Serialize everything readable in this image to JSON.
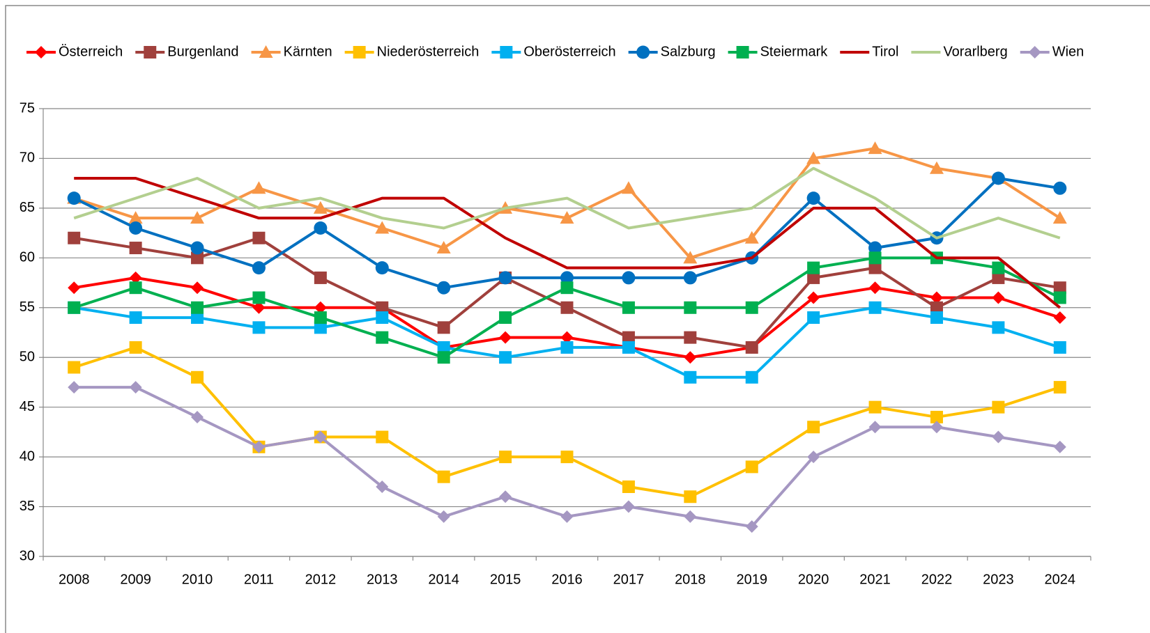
{
  "chart_data": {
    "type": "line",
    "categories": [
      "2008",
      "2009",
      "2010",
      "2011",
      "2012",
      "2013",
      "2014",
      "2015",
      "2016",
      "2017",
      "2018",
      "2019",
      "2020",
      "2021",
      "2022",
      "2023",
      "2024"
    ],
    "ylim": [
      30,
      75
    ],
    "yticks": [
      30,
      35,
      40,
      45,
      50,
      55,
      60,
      65,
      70,
      75
    ],
    "grid": true,
    "legend": "top",
    "series": [
      {
        "name": "Österreich",
        "color": "#ff0000",
        "marker": "diamond",
        "values": [
          57,
          58,
          57,
          55,
          55,
          55,
          51,
          52,
          52,
          51,
          50,
          51,
          56,
          57,
          56,
          56,
          54
        ]
      },
      {
        "name": "Burgenland",
        "color": "#a0403c",
        "marker": "square",
        "values": [
          62,
          61,
          60,
          62,
          58,
          55,
          53,
          58,
          55,
          52,
          52,
          51,
          58,
          59,
          55,
          58,
          57
        ]
      },
      {
        "name": "Kärnten",
        "color": "#f79646",
        "marker": "triangle",
        "values": [
          66,
          64,
          64,
          67,
          65,
          63,
          61,
          65,
          64,
          67,
          60,
          62,
          70,
          71,
          69,
          68,
          64
        ]
      },
      {
        "name": "Niederösterreich",
        "color": "#ffc000",
        "marker": "square",
        "values": [
          49,
          51,
          48,
          41,
          42,
          42,
          38,
          40,
          40,
          37,
          36,
          39,
          43,
          45,
          44,
          45,
          47
        ]
      },
      {
        "name": "Oberösterreich",
        "color": "#00b0f0",
        "marker": "square",
        "values": [
          55,
          54,
          54,
          53,
          53,
          54,
          51,
          50,
          51,
          51,
          48,
          48,
          54,
          55,
          54,
          53,
          51
        ]
      },
      {
        "name": "Salzburg",
        "color": "#0070c0",
        "marker": "circle",
        "values": [
          66,
          63,
          61,
          59,
          63,
          59,
          57,
          58,
          58,
          58,
          58,
          60,
          66,
          61,
          62,
          68,
          67
        ]
      },
      {
        "name": "Steiermark",
        "color": "#00b050",
        "marker": "square",
        "values": [
          55,
          57,
          55,
          56,
          54,
          52,
          50,
          54,
          57,
          55,
          55,
          55,
          59,
          60,
          60,
          59,
          56
        ]
      },
      {
        "name": "Tirol",
        "color": "#c00000",
        "marker": "none",
        "values": [
          68,
          68,
          66,
          64,
          64,
          66,
          66,
          62,
          59,
          59,
          59,
          60,
          65,
          65,
          60,
          60,
          55
        ]
      },
      {
        "name": "Vorarlberg",
        "color": "#b3cf8f",
        "marker": "none",
        "values": [
          64,
          66,
          68,
          65,
          66,
          64,
          63,
          65,
          66,
          63,
          64,
          65,
          69,
          66,
          62,
          64,
          62
        ]
      },
      {
        "name": "Wien",
        "color": "#a597c2",
        "marker": "diamond",
        "values": [
          47,
          47,
          44,
          41,
          42,
          37,
          34,
          36,
          34,
          35,
          34,
          33,
          40,
          43,
          43,
          42,
          41
        ]
      }
    ]
  }
}
